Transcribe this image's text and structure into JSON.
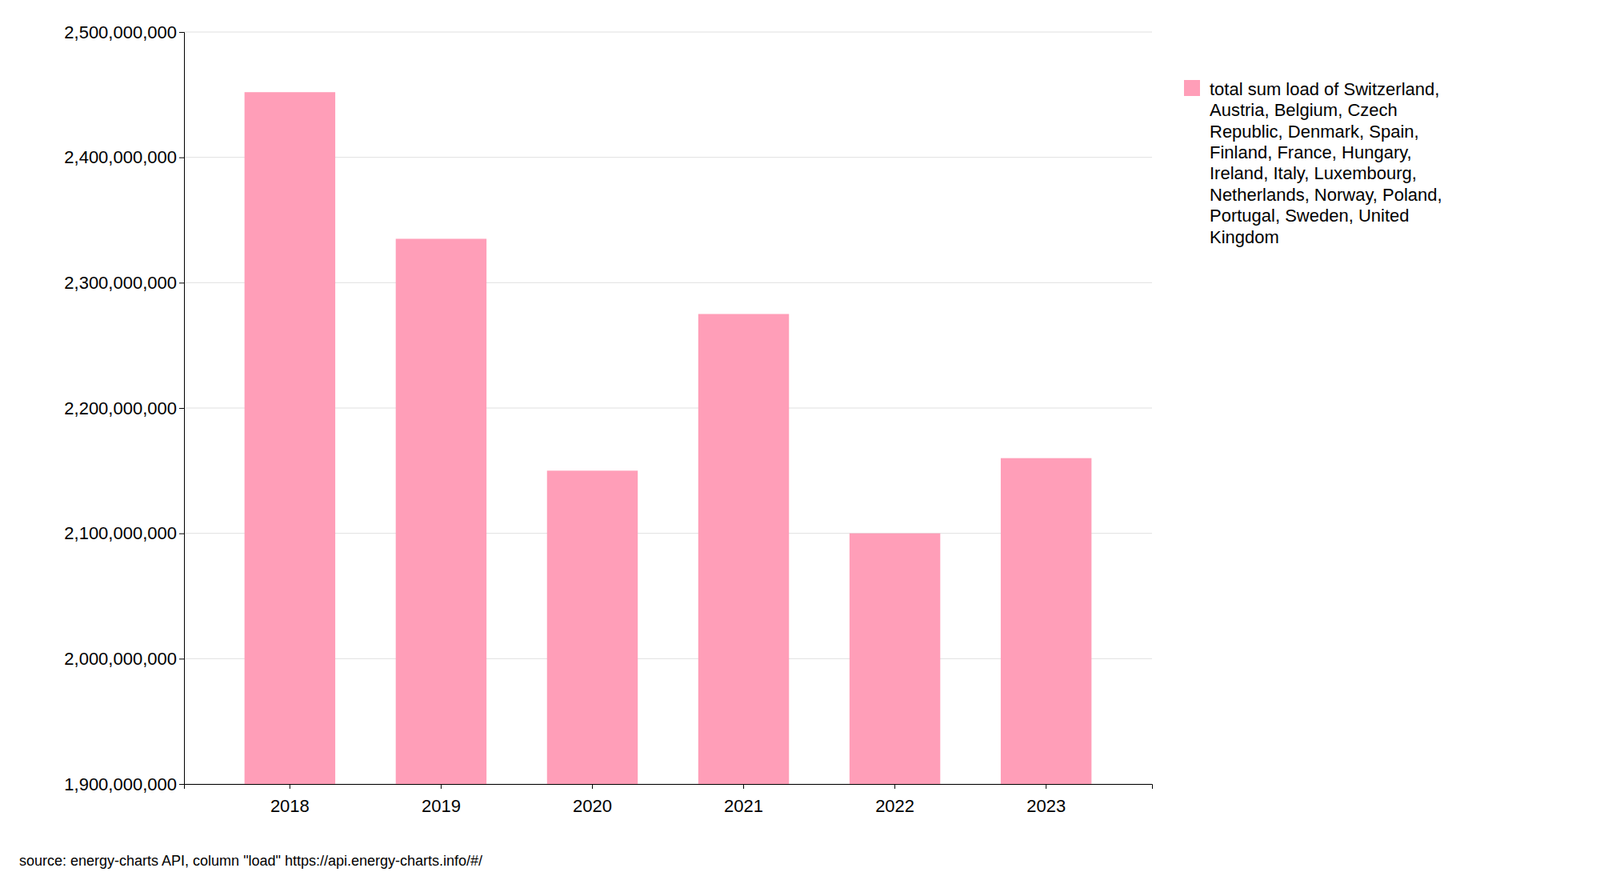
{
  "chart_data": {
    "type": "bar",
    "categories": [
      "2018",
      "2019",
      "2020",
      "2021",
      "2022",
      "2023"
    ],
    "series": [
      {
        "name": "total sum load of Switzerland,\nAustria, Belgium, Czech\nRepublic, Denmark, Spain,\nFinland, France, Hungary,\nIreland, Italy, Luxembourg,\nNetherlands, Norway, Poland,\nPortugal, Sweden, United\nKingdom",
        "color": "#FF9EB8",
        "values": [
          2452000000,
          2335000000,
          2150000000,
          2275000000,
          2100000000,
          2160000000
        ]
      }
    ],
    "ylim": [
      1900000000,
      2500000000
    ],
    "yticks": [
      {
        "value": 1900000000,
        "label": "1,900,000,000"
      },
      {
        "value": 2000000000,
        "label": "2,000,000,000"
      },
      {
        "value": 2100000000,
        "label": "2,100,000,000"
      },
      {
        "value": 2200000000,
        "label": "2,200,000,000"
      },
      {
        "value": 2300000000,
        "label": "2,300,000,000"
      },
      {
        "value": 2400000000,
        "label": "2,400,000,000"
      },
      {
        "value": 2500000000,
        "label": "2,500,000,000"
      }
    ],
    "grid": true,
    "legend": "right",
    "annotations": [
      "source: energy-charts API, column \"load\" https://api.energy-charts.info/#/"
    ]
  }
}
